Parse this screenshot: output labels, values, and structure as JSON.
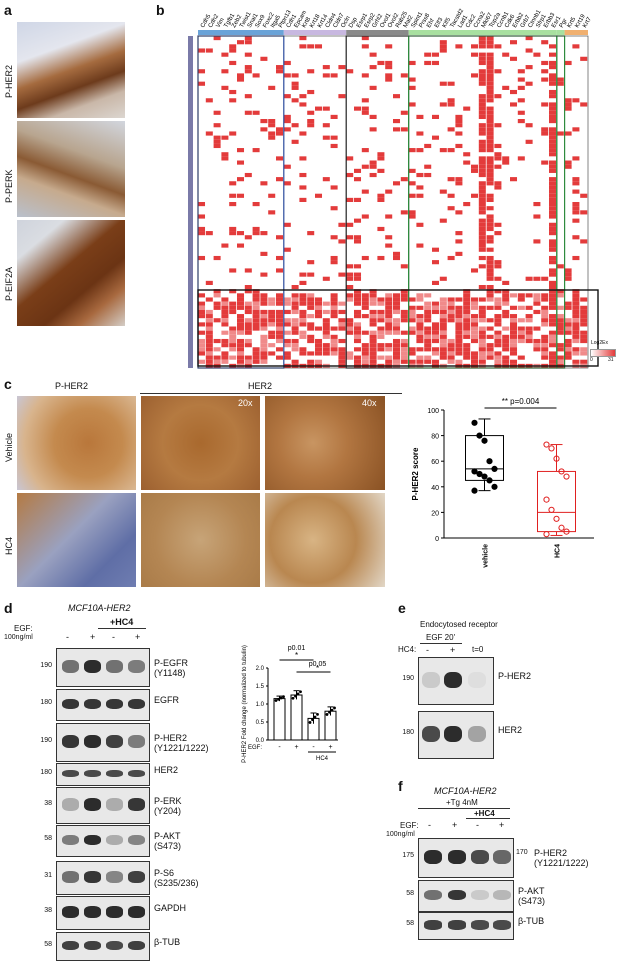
{
  "panels": {
    "a": {
      "label": "a",
      "rows": [
        "P-HER2",
        "P-PERK",
        "P-EIF2A"
      ]
    },
    "b": {
      "label": "b",
      "genes": [
        "Cdh5",
        "Cdh2",
        "Vim",
        "Tgfb1",
        "Zeb2",
        "Twist1",
        "Snai1",
        "Sox9",
        "Foxc2",
        "Itga5",
        "Ptpn13",
        "Cdh1",
        "Epcam",
        "Krt8",
        "Krt18",
        "Krt14",
        "Cldn4",
        "Cldn7",
        "Ocln",
        "Dsp",
        "Esrp1",
        "Esrp2",
        "Grhl2",
        "Ovol1",
        "Ovol2",
        "Rab25",
        "Mal2",
        "Spint1",
        "Prss8",
        "Ehf",
        "Elf3",
        "Klf5",
        "Tacstd2",
        "Lad1",
        "Cdc2",
        "Ccna2",
        "Mki67",
        "Top2a",
        "Ccnb1",
        "Cdk6",
        "Erbb2",
        "Grb7",
        "Ctnnb1",
        "Sfrp1",
        "Erbb3",
        "Esr1",
        "Pgr",
        "Krt5",
        "Krt19",
        "Krt7"
      ],
      "legend_title": "Log2Ex",
      "legend_min": "0",
      "legend_max": "31"
    },
    "c": {
      "label": "c",
      "col_titles": [
        "P-HER2",
        "HER2"
      ],
      "mags": [
        "20x",
        "40x"
      ],
      "rows": [
        "Vehicle",
        "HC4"
      ],
      "chart_data": {
        "type": "box",
        "ylabel": "P-HER2 score",
        "ylim": [
          0,
          100
        ],
        "yticks": [
          0,
          20,
          40,
          60,
          80,
          100
        ],
        "categories": [
          "vehicle",
          "HC4"
        ],
        "series": [
          {
            "name": "vehicle",
            "min": 37,
            "q1": 45,
            "median": 54,
            "q3": 80,
            "max": 93,
            "points": [
              90,
              80,
              76,
              60,
              54,
              52,
              50,
              48,
              45,
              40,
              37
            ]
          },
          {
            "name": "HC4",
            "min": 2,
            "q1": 5,
            "median": 20,
            "q3": 52,
            "max": 73,
            "points": [
              73,
              70,
              62,
              52,
              48,
              30,
              22,
              15,
              8,
              5,
              3
            ]
          }
        ],
        "annotation": "** p=0.004"
      }
    },
    "d": {
      "label": "d",
      "cell_line": "MCF10A-HER2",
      "treat": "+HC4",
      "egf": "EGF:",
      "egf_conc": "100ng/ml",
      "signs": [
        "-",
        "+",
        "-",
        "+"
      ],
      "blots": [
        {
          "mw": "190",
          "label": "P-EGFR\n(Y1148)"
        },
        {
          "mw": "180",
          "label": "EGFR"
        },
        {
          "mw": "190",
          "label": "P-HER2\n(Y1221/1222)"
        },
        {
          "mw": "180",
          "label": "HER2"
        },
        {
          "mw": "38",
          "label": "P-ERK\n(Y204)"
        },
        {
          "mw": "58",
          "label": "P-AKT\n(S473)"
        },
        {
          "mw": "31",
          "label": "P-S6\n(S235/236)"
        },
        {
          "mw": "38",
          "label": "GAPDH"
        },
        {
          "mw": "58",
          "label": "β-TUB"
        }
      ],
      "chart_data": {
        "type": "bar",
        "ylabel": "P-HER2 Fold change\n(normalized to tubulin)",
        "ylim": [
          0,
          2.0
        ],
        "yticks": [
          0,
          0.5,
          1.0,
          1.5,
          2.0
        ],
        "categories": [
          "-",
          "+",
          "-",
          "+"
        ],
        "values": [
          1.15,
          1.25,
          0.6,
          0.8
        ],
        "errors": [
          0.07,
          0.12,
          0.15,
          0.12
        ],
        "group_label": "HC4",
        "xrow_label": "EGF:",
        "annotations": [
          "p0.01",
          "*",
          "p0.05",
          "*"
        ]
      }
    },
    "e": {
      "label": "e",
      "title": "Endocytosed receptor",
      "group": "EGF 20'",
      "hc4": "HC4:",
      "signs": [
        "-",
        "+",
        "t=0"
      ],
      "blots": [
        {
          "mw": "190",
          "label": "P-HER2"
        },
        {
          "mw": "180",
          "label": "HER2"
        }
      ]
    },
    "f": {
      "label": "f",
      "cell_line": "MCF10A-HER2",
      "tg": "+Tg 4nM",
      "treat": "+HC4",
      "egf": "EGF:",
      "egf_conc": "100ng/ml",
      "signs": [
        "-",
        "+",
        "-",
        "+"
      ],
      "blots": [
        {
          "mw": "175",
          "mw_right": "170",
          "label": "P-HER2\n(Y1221/1222)"
        },
        {
          "mw": "58",
          "label": "P-AKT\n(S473)"
        },
        {
          "mw": "58",
          "label": "β-TUB"
        }
      ]
    }
  }
}
